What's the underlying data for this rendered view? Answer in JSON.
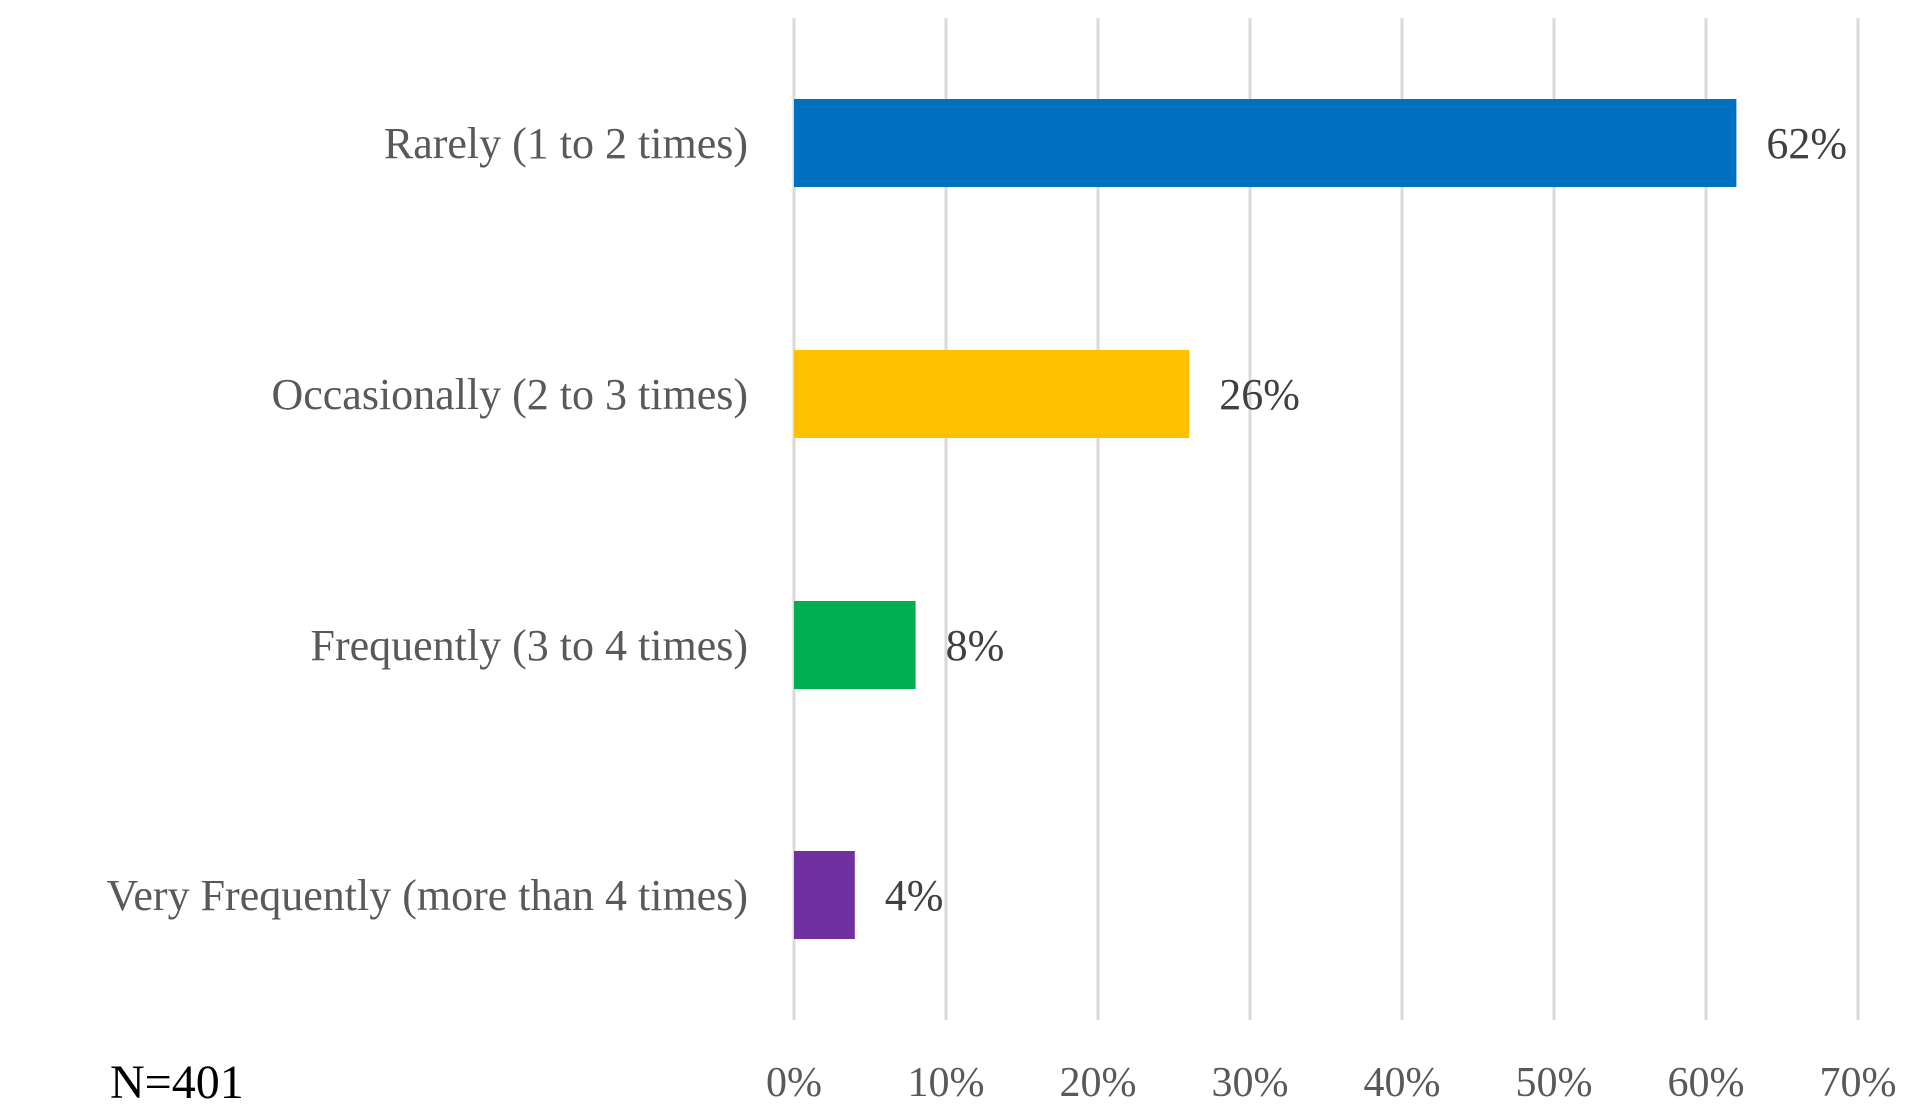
{
  "chart_data": {
    "type": "bar",
    "orientation": "horizontal",
    "categories": [
      "Rarely (1 to 2 times)",
      "Occasionally (2 to 3 times)",
      "Frequently (3 to 4 times)",
      "Very Frequently (more than 4 times)"
    ],
    "values": [
      62,
      26,
      8,
      4
    ],
    "data_labels": [
      "62%",
      "26%",
      "8%",
      "4%"
    ],
    "colors": [
      "#0070C0",
      "#FFC000",
      "#00B050",
      "#7030A0"
    ],
    "xlim": [
      0,
      70
    ],
    "x_ticks": [
      0,
      10,
      20,
      30,
      40,
      50,
      60,
      70
    ],
    "x_tick_labels": [
      "0%",
      "10%",
      "20%",
      "30%",
      "40%",
      "50%",
      "60%",
      "70%"
    ],
    "grid": "vertical",
    "legend": "none",
    "title": "",
    "xlabel": "",
    "ylabel": ""
  },
  "annotation": {
    "note": "N=401"
  }
}
